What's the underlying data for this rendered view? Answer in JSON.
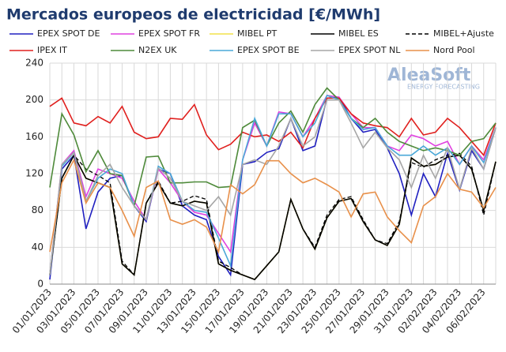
{
  "chart_data": {
    "type": "line",
    "title": "Mercados europeos de electricidad [€/MWh]",
    "watermark": "AleaSoft",
    "watermark_sub": "ENERGY FORECASTING",
    "categories": [
      "01/01/2023",
      null,
      "03/01/2023",
      null,
      "05/01/2023",
      null,
      "07/01/2023",
      null,
      "09/01/2023",
      null,
      "11/01/2023",
      null,
      "13/01/2023",
      null,
      "15/01/2023",
      null,
      "17/01/2023",
      null,
      "19/01/2023",
      null,
      "21/01/2023",
      null,
      "23/01/2023",
      null,
      "25/01/2023",
      null,
      "27/01/2023",
      null,
      "29/01/2023",
      null,
      "31/01/2023",
      null,
      "02/02/2023",
      null,
      "04/02/2023",
      null,
      "06/02/2023",
      null
    ],
    "ylim": [
      0,
      240
    ],
    "yticks": [
      0,
      40,
      80,
      120,
      160,
      200,
      240
    ],
    "grid": true,
    "series": [
      {
        "name": "EPEX SPOT DE",
        "color": "#2020c0",
        "values": [
          5,
          125,
          140,
          60,
          100,
          115,
          118,
          85,
          68,
          125,
          120,
          85,
          75,
          70,
          30,
          10,
          130,
          133,
          143,
          147,
          180,
          145,
          150,
          202,
          203,
          180,
          165,
          168,
          148,
          120,
          75,
          120,
          95,
          142,
          102,
          145,
          125,
          170
        ]
      },
      {
        "name": "EPEX SPOT FR",
        "color": "#e040e0",
        "values": [
          10,
          130,
          145,
          95,
          125,
          120,
          115,
          90,
          70,
          125,
          110,
          90,
          78,
          75,
          55,
          35,
          135,
          175,
          150,
          187,
          185,
          160,
          180,
          205,
          203,
          185,
          170,
          170,
          150,
          145,
          162,
          158,
          150,
          155,
          130,
          150,
          135,
          170
        ]
      },
      {
        "name": "MIBEL PT",
        "color": "#f2e24a",
        "values": [
          10,
          115,
          140,
          115,
          110,
          105,
          22,
          10,
          88,
          110,
          88,
          85,
          90,
          88,
          22,
          15,
          10,
          5,
          20,
          35,
          92,
          60,
          38,
          72,
          90,
          93,
          68,
          48,
          42,
          65,
          137,
          128,
          130,
          138,
          140,
          125,
          80,
          133
        ]
      },
      {
        "name": "MIBEL ES",
        "color": "#000000",
        "values": [
          10,
          115,
          140,
          115,
          110,
          105,
          22,
          10,
          88,
          110,
          88,
          85,
          90,
          88,
          22,
          15,
          10,
          5,
          20,
          35,
          92,
          60,
          38,
          72,
          90,
          93,
          68,
          48,
          42,
          65,
          137,
          128,
          130,
          138,
          140,
          125,
          80,
          133
        ]
      },
      {
        "name": "MIBEL+Ajuste",
        "color": "#000000",
        "dashed": true,
        "values": [
          10,
          115,
          140,
          125,
          118,
          110,
          25,
          10,
          88,
          112,
          88,
          90,
          96,
          92,
          25,
          18,
          10,
          5,
          20,
          35,
          92,
          60,
          40,
          75,
          92,
          95,
          70,
          48,
          44,
          68,
          132,
          127,
          135,
          140,
          142,
          128,
          75,
          133
        ]
      },
      {
        "name": "IPEX IT",
        "color": "#e0201e",
        "values": [
          193,
          202,
          175,
          172,
          182,
          175,
          193,
          165,
          158,
          160,
          180,
          179,
          195,
          162,
          146,
          152,
          165,
          160,
          162,
          155,
          165,
          148,
          180,
          202,
          202,
          185,
          175,
          172,
          170,
          160,
          180,
          162,
          165,
          180,
          170,
          155,
          140,
          175
        ]
      },
      {
        "name": "N2EX UK",
        "color": "#4e8a3a",
        "values": [
          105,
          185,
          162,
          122,
          145,
          120,
          118,
          85,
          138,
          139,
          110,
          110,
          111,
          111,
          105,
          106,
          170,
          178,
          150,
          175,
          188,
          165,
          195,
          213,
          200,
          180,
          170,
          180,
          165,
          155,
          150,
          145,
          148,
          145,
          140,
          155,
          158,
          175
        ]
      },
      {
        "name": "EPEX SPOT BE",
        "color": "#4aa8d8",
        "values": [
          10,
          128,
          143,
          90,
          115,
          125,
          120,
          85,
          70,
          128,
          120,
          90,
          80,
          78,
          50,
          20,
          135,
          180,
          150,
          185,
          185,
          160,
          175,
          205,
          200,
          180,
          168,
          170,
          150,
          140,
          140,
          150,
          140,
          148,
          130,
          150,
          132,
          170
        ]
      },
      {
        "name": "EPEX SPOT NL",
        "color": "#a6a6a6",
        "values": [
          10,
          130,
          143,
          90,
          118,
          130,
          105,
          85,
          70,
          126,
          115,
          90,
          85,
          80,
          95,
          75,
          130,
          135,
          130,
          150,
          180,
          150,
          160,
          200,
          200,
          175,
          148,
          165,
          148,
          135,
          105,
          140,
          115,
          148,
          103,
          148,
          125,
          170
        ]
      },
      {
        "name": "Nord Pool",
        "color": "#e8904a",
        "values": [
          35,
          110,
          135,
          88,
          110,
          105,
          80,
          52,
          105,
          112,
          70,
          65,
          70,
          62,
          35,
          108,
          98,
          108,
          134,
          134,
          120,
          110,
          115,
          108,
          100,
          73,
          98,
          100,
          73,
          58,
          45,
          85,
          95,
          120,
          103,
          100,
          83,
          105
        ]
      }
    ]
  }
}
